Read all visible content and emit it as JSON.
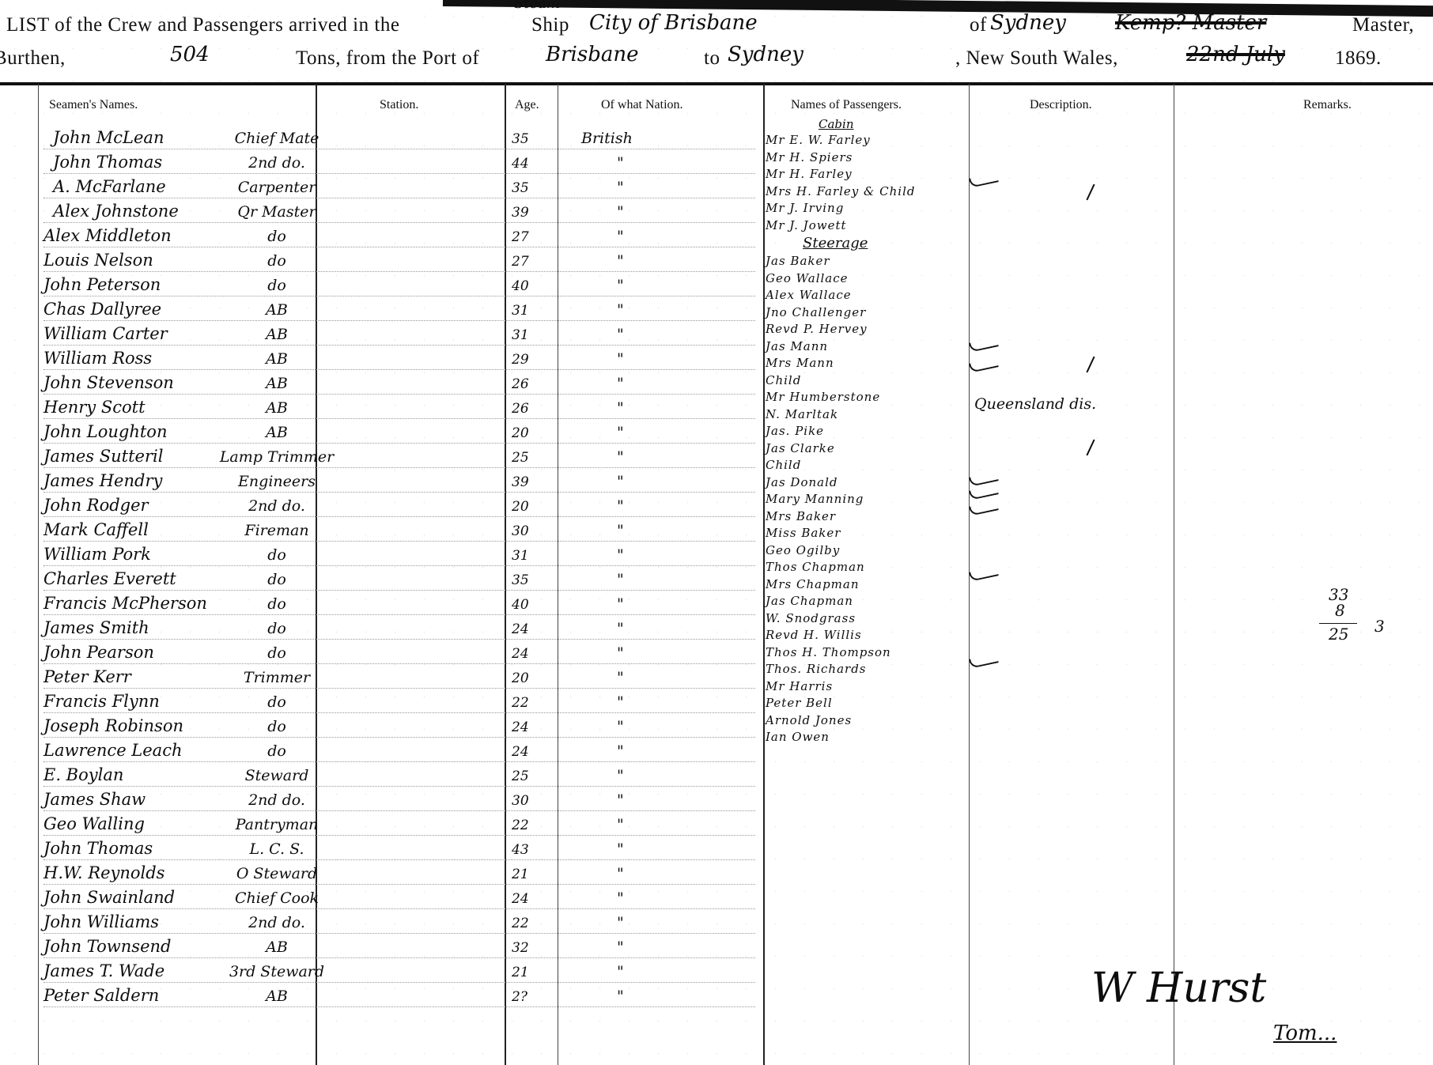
{
  "header": {
    "line1_prefix": "LIST of the Crew and Passengers arrived in the",
    "ship_label": "Ship",
    "ship_type": "Steam",
    "ship_name": "City of Brisbane",
    "of_label": "of",
    "of_port": "Sydney",
    "master_struck": "Kemp? Master",
    "master_label": "Master,",
    "burthen_label": "Burthen,",
    "burthen": "504",
    "tons_label": "Tons, from the Port of",
    "from_port": "Brisbane",
    "to_label": "to",
    "to_port": "Sydney",
    "nsw_label": ", New South Wales,",
    "date_struck": "22nd July",
    "year": "1869."
  },
  "columns": [
    "Seamen's Names.",
    "Station.",
    "Age.",
    "Of what Nation.",
    "Names of Passengers.",
    "Description.",
    "Remarks."
  ],
  "crew": [
    {
      "name": "John McLean",
      "station": "Chief Mate",
      "age": "35",
      "nation": "British"
    },
    {
      "name": "John Thomas",
      "station": "2nd do.",
      "age": "44",
      "nation": "\""
    },
    {
      "name": "A. McFarlane",
      "station": "Carpenter",
      "age": "35",
      "nation": "\""
    },
    {
      "name": "Alex Johnstone",
      "station": "Qr Master",
      "age": "39",
      "nation": "\""
    },
    {
      "name": "Alex Middleton",
      "station": "do",
      "age": "27",
      "nation": "\""
    },
    {
      "name": "Louis Nelson",
      "station": "do",
      "age": "27",
      "nation": "\""
    },
    {
      "name": "John Peterson",
      "station": "do",
      "age": "40",
      "nation": "\""
    },
    {
      "name": "Chas Dallyree",
      "station": "AB",
      "age": "31",
      "nation": "\""
    },
    {
      "name": "William Carter",
      "station": "AB",
      "age": "31",
      "nation": "\""
    },
    {
      "name": "William Ross",
      "station": "AB",
      "age": "29",
      "nation": "\""
    },
    {
      "name": "John Stevenson",
      "station": "AB",
      "age": "26",
      "nation": "\""
    },
    {
      "name": "Henry Scott",
      "station": "AB",
      "age": "26",
      "nation": "\""
    },
    {
      "name": "John Loughton",
      "station": "AB",
      "age": "20",
      "nation": "\""
    },
    {
      "name": "James Sutteril",
      "station": "Lamp Trimmer",
      "age": "25",
      "nation": "\""
    },
    {
      "name": "James Hendry",
      "station": "Engineers",
      "age": "39",
      "nation": "\""
    },
    {
      "name": "John Rodger",
      "station": "2nd do.",
      "age": "20",
      "nation": "\""
    },
    {
      "name": "Mark Caffell",
      "station": "Fireman",
      "age": "30",
      "nation": "\""
    },
    {
      "name": "William Pork",
      "station": "do",
      "age": "31",
      "nation": "\""
    },
    {
      "name": "Charles Everett",
      "station": "do",
      "age": "35",
      "nation": "\""
    },
    {
      "name": "Francis McPherson",
      "station": "do",
      "age": "40",
      "nation": "\""
    },
    {
      "name": "James Smith",
      "station": "do",
      "age": "24",
      "nation": "\""
    },
    {
      "name": "John Pearson",
      "station": "do",
      "age": "24",
      "nation": "\""
    },
    {
      "name": "Peter Kerr",
      "station": "Trimmer",
      "age": "20",
      "nation": "\""
    },
    {
      "name": "Francis Flynn",
      "station": "do",
      "age": "22",
      "nation": "\""
    },
    {
      "name": "Joseph Robinson",
      "station": "do",
      "age": "24",
      "nation": "\""
    },
    {
      "name": "Lawrence Leach",
      "station": "do",
      "age": "24",
      "nation": "\""
    },
    {
      "name": "E. Boylan",
      "station": "Steward",
      "age": "25",
      "nation": "\""
    },
    {
      "name": "James Shaw",
      "station": "2nd do.",
      "age": "30",
      "nation": "\""
    },
    {
      "name": "Geo Walling",
      "station": "Pantryman",
      "age": "22",
      "nation": "\""
    },
    {
      "name": "John Thomas",
      "station": "L. C. S.",
      "age": "43",
      "nation": "\""
    },
    {
      "name": "H.W. Reynolds",
      "station": "O Steward",
      "age": "21",
      "nation": "\""
    },
    {
      "name": "John Swainland",
      "station": "Chief Cook",
      "age": "24",
      "nation": "\""
    },
    {
      "name": "John Williams",
      "station": "2nd do.",
      "age": "22",
      "nation": "\""
    },
    {
      "name": "John Townsend",
      "station": "AB",
      "age": "32",
      "nation": "\""
    },
    {
      "name": "James T. Wade",
      "station": "3rd Steward",
      "age": "21",
      "nation": "\""
    },
    {
      "name": "Peter Saldern",
      "station": "AB",
      "age": "2?",
      "nation": "\""
    }
  ],
  "passengers": {
    "cabin_label": "Cabin",
    "cabin": [
      "Mr E. W. Farley",
      "Mr H. Spiers",
      "Mr H. Farley",
      "Mrs H. Farley & Child",
      "Mr J. Irving",
      "Mr J. Jowett"
    ],
    "steerage_label": "Steerage",
    "steerage": [
      "Jas Baker",
      "Geo Wallace",
      "Alex Wallace",
      "Jno Challenger",
      "Revd P. Hervey",
      "Jas Mann",
      "Mrs Mann",
      "Child",
      "Mr Humberstone",
      "N. Marltak",
      "Jas. Pike",
      "Jas Clarke",
      "Child",
      "Jas Donald",
      "Mary Manning",
      "Mrs Baker",
      "Miss Baker",
      "Geo Ogilby",
      "Thos Chapman",
      "Mrs Chapman",
      "Jas Chapman",
      "W. Snodgrass",
      "Revd H. Willis",
      "Thos H. Thompson",
      "Thos. Richards",
      "Mr Harris",
      "Peter Bell",
      "Arnold Jones",
      "Ian Owen"
    ]
  },
  "description": {
    "note": "Queensland dis."
  },
  "remarks": {
    "top": "33",
    "minus": "8",
    "result": "25",
    "side": "3"
  },
  "signature": {
    "name": "W Hurst",
    "second": "Tom..."
  }
}
